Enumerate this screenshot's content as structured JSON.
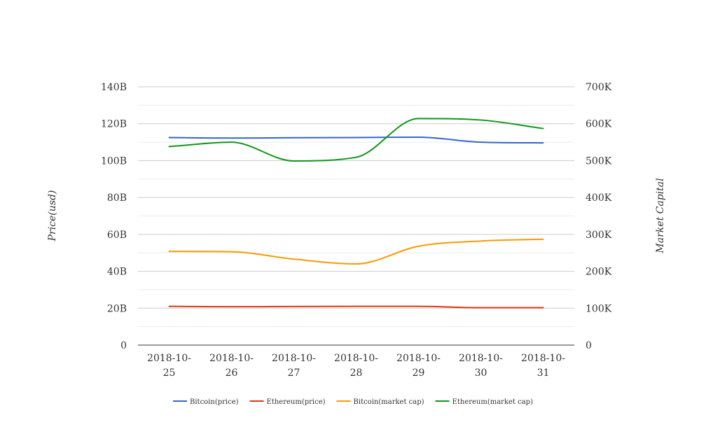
{
  "chart_data": {
    "type": "line",
    "categories": [
      "2018-10-25",
      "2018-10-26",
      "2018-10-27",
      "2018-10-28",
      "2018-10-29",
      "2018-10-30",
      "2018-10-31"
    ],
    "category_labels": [
      [
        "2018-10-",
        "25"
      ],
      [
        "2018-10-",
        "26"
      ],
      [
        "2018-10-",
        "27"
      ],
      [
        "2018-10-",
        "28"
      ],
      [
        "2018-10-",
        "29"
      ],
      [
        "2018-10-",
        "30"
      ],
      [
        "2018-10-",
        "31"
      ]
    ],
    "ylabel_left": "Price(usd)",
    "ylabel_right": "Market Capital",
    "y_left": {
      "range": [
        0,
        140000000000
      ],
      "ticks": [
        0,
        20000000000,
        40000000000,
        60000000000,
        80000000000,
        100000000000,
        120000000000,
        140000000000
      ],
      "tick_labels": [
        "0",
        "20B",
        "40B",
        "60B",
        "80B",
        "100B",
        "120B",
        "140B"
      ]
    },
    "y_right": {
      "range": [
        0,
        700000
      ],
      "ticks": [
        0,
        100000,
        200000,
        300000,
        400000,
        500000,
        600000,
        700000
      ],
      "tick_labels": [
        "0",
        "100K",
        "200K",
        "300K",
        "400K",
        "500K",
        "600K",
        "700K"
      ]
    },
    "grid": true,
    "legend_position": "bottom",
    "series": [
      {
        "name": "Bitcoin(price)",
        "axis": "left",
        "color": "#3366cc",
        "values": [
          112500000000,
          112200000000,
          112400000000,
          112500000000,
          112700000000,
          110000000000,
          109600000000
        ]
      },
      {
        "name": "Ethereum(price)",
        "axis": "left",
        "color": "#dc3912",
        "values": [
          21000000000,
          20800000000,
          20900000000,
          21000000000,
          21000000000,
          20300000000,
          20300000000
        ]
      },
      {
        "name": "Bitcoin(market cap)",
        "axis": "right",
        "color": "#ff9900",
        "values": [
          254000,
          253000,
          233000,
          220000,
          268000,
          282000,
          287000
        ]
      },
      {
        "name": "Ethereum(market cap)",
        "axis": "right",
        "color": "#109618",
        "values": [
          538000,
          550000,
          499000,
          509000,
          614000,
          610000,
          587000
        ]
      }
    ]
  }
}
